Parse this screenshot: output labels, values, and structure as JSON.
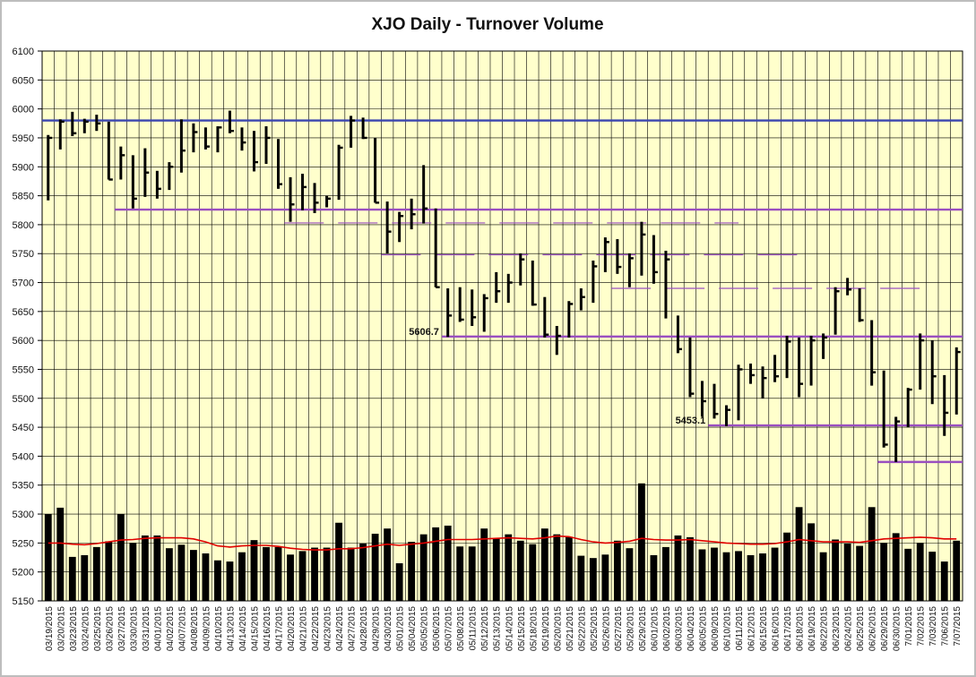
{
  "chart_data": {
    "type": "ohlc_bar_volume",
    "title": "XJO Daily - Turnover Volume",
    "ylim": [
      5150,
      6100
    ],
    "yticks": [
      5150,
      5200,
      5250,
      5300,
      5350,
      5400,
      5450,
      5500,
      5550,
      5600,
      5650,
      5700,
      5750,
      5800,
      5850,
      5900,
      5950,
      6000,
      6050,
      6100
    ],
    "grid": true,
    "colors": {
      "plot_bg": "#ffffcc",
      "price_bar": "#000000",
      "volume_bar": "#000000",
      "moving_average": "#e00000",
      "support_resistance": "#9a4fc0",
      "top_line": "#3a45b0"
    },
    "dates": [
      "03/19/2015",
      "03/20/2015",
      "03/23/2015",
      "03/24/2015",
      "03/25/2015",
      "03/26/2015",
      "03/27/2015",
      "03/30/2015",
      "03/31/2015",
      "04/01/2015",
      "04/02/2015",
      "04/07/2015",
      "04/08/2015",
      "04/09/2015",
      "04/10/2015",
      "04/13/2015",
      "04/14/2015",
      "04/15/2015",
      "04/16/2015",
      "04/17/2015",
      "04/20/2015",
      "04/21/2015",
      "04/22/2015",
      "04/23/2015",
      "04/24/2015",
      "04/27/2015",
      "04/28/2015",
      "04/29/2015",
      "04/30/2015",
      "05/01/2015",
      "05/04/2015",
      "05/05/2015",
      "05/06/2015",
      "05/07/2015",
      "05/08/2015",
      "05/11/2015",
      "05/12/2015",
      "05/13/2015",
      "05/14/2015",
      "05/15/2015",
      "05/18/2015",
      "05/19/2015",
      "05/20/2015",
      "05/21/2015",
      "05/22/2015",
      "05/25/2015",
      "05/26/2015",
      "05/27/2015",
      "05/28/2015",
      "05/29/2015",
      "06/01/2015",
      "06/02/2015",
      "06/03/2015",
      "06/04/2015",
      "06/05/2015",
      "06/09/2015",
      "06/10/2015",
      "06/11/2015",
      "06/12/2015",
      "06/15/2015",
      "06/16/2015",
      "06/17/2015",
      "06/18/2015",
      "06/19/2015",
      "06/22/2015",
      "06/23/2015",
      "06/24/2015",
      "06/25/2015",
      "06/26/2015",
      "06/29/2015",
      "06/30/2015",
      "7/01/2015",
      "7/02/2015",
      "7/03/2015",
      "7/06/2015",
      "7/07/2015"
    ],
    "x_labels": [
      "03/19/2015",
      "03/23/2015",
      "03/25/2015",
      "03/27/2015",
      "03/31/2015",
      "04/02/2015",
      "04/08/2015",
      "04/10/2015",
      "04/14/2015",
      "04/16/2015",
      "04/20/2015",
      "04/22/2015",
      "04/24/2015",
      "04/28/2015",
      "04/30/2015",
      "05/04/2015",
      "05/06/2015",
      "05/08/2015",
      "05/12/2015",
      "05/14/2015",
      "05/18/2015",
      "05/20/2015",
      "05/22/2015",
      "05/26/2015",
      "05/28/2015",
      "06/01/2015",
      "06/03/2015",
      "06/05/2015",
      "06/10/2015",
      "06/12/2015",
      "06/16/2015",
      "06/18/2015",
      "06/22/2015",
      "06/24/2015",
      "06/26/2015",
      "06/30/2015",
      "7/02/2015",
      "7/06/2015",
      "03/20/2015",
      "03/24/2015",
      "03/26/2015",
      "03/30/2015",
      "04/01/2015",
      "04/07/2015",
      "04/09/2015",
      "04/13/2015",
      "04/15/2015",
      "04/17/2015",
      "04/21/2015",
      "04/23/2015",
      "04/27/2015",
      "04/29/2015",
      "05/01/2015",
      "05/05/2015",
      "05/07/2015",
      "05/11/2015",
      "05/13/2015",
      "05/15/2015",
      "05/19/2015",
      "05/21/2015",
      "05/25/2015",
      "05/27/2015",
      "05/29/2015",
      "06/02/2015",
      "06/04/2015",
      "06/09/2015",
      "06/11/2015",
      "06/15/2015",
      "06/17/2015",
      "06/19/2015",
      "06/23/2015",
      "06/25/2015",
      "06/29/2015",
      "7/01/2015",
      "7/03/2015",
      "7/07/2015"
    ],
    "ohlc": [
      {
        "h": 5955,
        "l": 5842,
        "c": 5950
      },
      {
        "h": 5982,
        "l": 5930,
        "c": 5978
      },
      {
        "h": 5995,
        "l": 5953,
        "c": 5958
      },
      {
        "h": 5983,
        "l": 5958,
        "c": 5978
      },
      {
        "h": 5990,
        "l": 5962,
        "c": 5975
      },
      {
        "h": 5978,
        "l": 5878,
        "c": 5878
      },
      {
        "h": 5935,
        "l": 5878,
        "c": 5920
      },
      {
        "h": 5920,
        "l": 5828,
        "c": 5845
      },
      {
        "h": 5932,
        "l": 5848,
        "c": 5890
      },
      {
        "h": 5893,
        "l": 5845,
        "c": 5862
      },
      {
        "h": 5908,
        "l": 5860,
        "c": 5900
      },
      {
        "h": 5982,
        "l": 5890,
        "c": 5928
      },
      {
        "h": 5975,
        "l": 5925,
        "c": 5960
      },
      {
        "h": 5968,
        "l": 5930,
        "c": 5935
      },
      {
        "h": 5970,
        "l": 5925,
        "c": 5968
      },
      {
        "h": 5997,
        "l": 5958,
        "c": 5962
      },
      {
        "h": 5968,
        "l": 5928,
        "c": 5942
      },
      {
        "h": 5962,
        "l": 5892,
        "c": 5908
      },
      {
        "h": 5970,
        "l": 5905,
        "c": 5950
      },
      {
        "h": 5948,
        "l": 5862,
        "c": 5870
      },
      {
        "h": 5882,
        "l": 5805,
        "c": 5835
      },
      {
        "h": 5888,
        "l": 5825,
        "c": 5865
      },
      {
        "h": 5872,
        "l": 5820,
        "c": 5838
      },
      {
        "h": 5850,
        "l": 5830,
        "c": 5845
      },
      {
        "h": 5938,
        "l": 5843,
        "c": 5933
      },
      {
        "h": 5988,
        "l": 5933,
        "c": 5980
      },
      {
        "h": 5985,
        "l": 5948,
        "c": 5950
      },
      {
        "h": 5950,
        "l": 5838,
        "c": 5838
      },
      {
        "h": 5840,
        "l": 5750,
        "c": 5788
      },
      {
        "h": 5822,
        "l": 5770,
        "c": 5815
      },
      {
        "h": 5845,
        "l": 5792,
        "c": 5818
      },
      {
        "h": 5903,
        "l": 5802,
        "c": 5828
      },
      {
        "h": 5828,
        "l": 5692,
        "c": 5692
      },
      {
        "h": 5690,
        "l": 5606,
        "c": 5643
      },
      {
        "h": 5692,
        "l": 5632,
        "c": 5636
      },
      {
        "h": 5688,
        "l": 5625,
        "c": 5640
      },
      {
        "h": 5680,
        "l": 5615,
        "c": 5673
      },
      {
        "h": 5718,
        "l": 5665,
        "c": 5685
      },
      {
        "h": 5715,
        "l": 5665,
        "c": 5700
      },
      {
        "h": 5750,
        "l": 5695,
        "c": 5740
      },
      {
        "h": 5738,
        "l": 5660,
        "c": 5662
      },
      {
        "h": 5675,
        "l": 5605,
        "c": 5610
      },
      {
        "h": 5625,
        "l": 5575,
        "c": 5608
      },
      {
        "h": 5668,
        "l": 5605,
        "c": 5663
      },
      {
        "h": 5690,
        "l": 5652,
        "c": 5675
      },
      {
        "h": 5738,
        "l": 5665,
        "c": 5728
      },
      {
        "h": 5778,
        "l": 5718,
        "c": 5770
      },
      {
        "h": 5775,
        "l": 5715,
        "c": 5727
      },
      {
        "h": 5750,
        "l": 5692,
        "c": 5742
      },
      {
        "h": 5805,
        "l": 5712,
        "c": 5783
      },
      {
        "h": 5782,
        "l": 5698,
        "c": 5718
      },
      {
        "h": 5755,
        "l": 5638,
        "c": 5740
      },
      {
        "h": 5643,
        "l": 5578,
        "c": 5585
      },
      {
        "h": 5605,
        "l": 5502,
        "c": 5508
      },
      {
        "h": 5530,
        "l": 5468,
        "c": 5495
      },
      {
        "h": 5525,
        "l": 5465,
        "c": 5473
      },
      {
        "h": 5488,
        "l": 5452,
        "c": 5480
      },
      {
        "h": 5558,
        "l": 5462,
        "c": 5550
      },
      {
        "h": 5560,
        "l": 5525,
        "c": 5540
      },
      {
        "h": 5555,
        "l": 5500,
        "c": 5535
      },
      {
        "h": 5575,
        "l": 5528,
        "c": 5538
      },
      {
        "h": 5608,
        "l": 5535,
        "c": 5598
      },
      {
        "h": 5605,
        "l": 5502,
        "c": 5525
      },
      {
        "h": 5608,
        "l": 5522,
        "c": 5600
      },
      {
        "h": 5612,
        "l": 5568,
        "c": 5605
      },
      {
        "h": 5692,
        "l": 5610,
        "c": 5685
      },
      {
        "h": 5708,
        "l": 5678,
        "c": 5688
      },
      {
        "h": 5690,
        "l": 5632,
        "c": 5635
      },
      {
        "h": 5635,
        "l": 5522,
        "c": 5545
      },
      {
        "h": 5548,
        "l": 5415,
        "c": 5420
      },
      {
        "h": 5468,
        "l": 5390,
        "c": 5460
      },
      {
        "h": 5518,
        "l": 5450,
        "c": 5515
      },
      {
        "h": 5612,
        "l": 5515,
        "c": 5600
      },
      {
        "h": 5600,
        "l": 5490,
        "c": 5538
      },
      {
        "h": 5540,
        "l": 5435,
        "c": 5475
      },
      {
        "h": 5588,
        "l": 5472,
        "c": 5580
      }
    ],
    "volume_bars": [
      5300,
      5311,
      5226,
      5229,
      5243,
      5253,
      5300,
      5250,
      5263,
      5263,
      5241,
      5247,
      5238,
      5232,
      5220,
      5218,
      5234,
      5255,
      5243,
      5243,
      5230,
      5236,
      5242,
      5242,
      5285,
      5242,
      5249,
      5266,
      5275,
      5215,
      5252,
      5265,
      5277,
      5280,
      5244,
      5244,
      5275,
      5258,
      5265,
      5254,
      5248,
      5275,
      5265,
      5260,
      5228,
      5224,
      5230,
      5254,
      5241,
      5353,
      5229,
      5243,
      5263,
      5260,
      5239,
      5242,
      5234,
      5236,
      5229,
      5232,
      5242,
      5268,
      5312,
      5284,
      5234,
      5256,
      5249,
      5245,
      5312,
      5250,
      5267,
      5240,
      5250,
      5235,
      5218,
      5254
    ],
    "moving_average": [
      5250,
      5250,
      5248,
      5247,
      5249,
      5252,
      5255,
      5256,
      5258,
      5259,
      5259,
      5259,
      5257,
      5252,
      5245,
      5243,
      5245,
      5246,
      5246,
      5244,
      5241,
      5239,
      5238,
      5238,
      5240,
      5240,
      5242,
      5245,
      5248,
      5246,
      5248,
      5250,
      5253,
      5256,
      5256,
      5256,
      5257,
      5258,
      5259,
      5258,
      5257,
      5259,
      5262,
      5261,
      5256,
      5252,
      5250,
      5251,
      5253,
      5258,
      5256,
      5255,
      5255,
      5256,
      5254,
      5252,
      5250,
      5249,
      5248,
      5248,
      5249,
      5252,
      5256,
      5254,
      5252,
      5252,
      5252,
      5251,
      5254,
      5257,
      5258,
      5259,
      5260,
      5259,
      5257,
      5257
    ],
    "horizontal_lines": [
      {
        "value": 5980,
        "from": 0,
        "to": 75.5,
        "style": "solid",
        "color": "#3a45b0"
      },
      {
        "value": 5826,
        "from": 6,
        "to": 75.5,
        "style": "solid",
        "color": "#9a4fc0"
      },
      {
        "value": 5803,
        "from": 20,
        "to": 57,
        "style": "dashed",
        "color": "#9a4fc0"
      },
      {
        "value": 5748,
        "from": 28,
        "to": 62,
        "style": "dashed",
        "color": "#9a4fc0"
      },
      {
        "value": 5690,
        "from": 47,
        "to": 73,
        "style": "dashed",
        "color": "#9a4fc0"
      },
      {
        "value": 5606.7,
        "from": 33,
        "to": 75.5,
        "style": "solid",
        "color": "#9a4fc0"
      },
      {
        "value": 5453.1,
        "from": 55,
        "to": 75.5,
        "style": "solid",
        "color": "#9a4fc0"
      },
      {
        "value": 5390,
        "from": 69,
        "to": 75.5,
        "style": "solid",
        "color": "#9a4fc0"
      }
    ],
    "annotations": [
      {
        "text": "5606.7",
        "value": 5606.7,
        "index": 33
      },
      {
        "text": "5453.1",
        "value": 5453.1,
        "index": 55
      }
    ]
  }
}
